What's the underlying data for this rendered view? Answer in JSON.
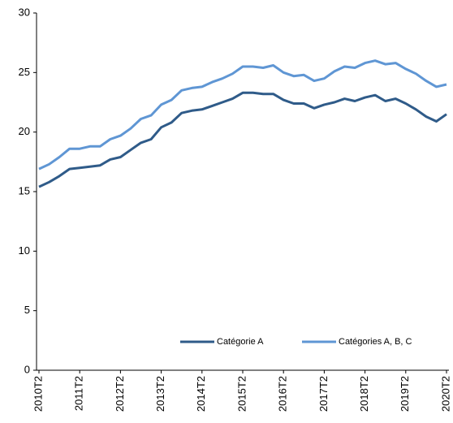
{
  "chart_data": {
    "type": "line",
    "categories": [
      "2010T2",
      null,
      null,
      null,
      "2011T2",
      null,
      null,
      null,
      "2012T2",
      null,
      null,
      null,
      "2013T2",
      null,
      null,
      null,
      "2014T2",
      null,
      null,
      null,
      "2015T2",
      null,
      null,
      null,
      "2016T2",
      null,
      null,
      null,
      "2017T2",
      null,
      null,
      null,
      "2018T2",
      null,
      null,
      null,
      "2019T2",
      null,
      null,
      null,
      "2020T2"
    ],
    "series": [
      {
        "name": "Catégorie A",
        "color": "#2f5b89",
        "values": [
          15.4,
          15.8,
          16.3,
          16.9,
          17.0,
          17.1,
          17.2,
          17.7,
          17.9,
          18.5,
          19.1,
          19.4,
          20.4,
          20.8,
          21.6,
          21.8,
          21.9,
          22.2,
          22.5,
          22.8,
          23.3,
          23.3,
          23.2,
          23.2,
          22.7,
          22.4,
          22.4,
          22.0,
          22.3,
          22.5,
          22.8,
          22.6,
          22.9,
          23.1,
          22.6,
          22.8,
          22.4,
          21.9,
          21.3,
          20.9,
          21.5
        ]
      },
      {
        "name": "Catégories A, B, C",
        "color": "#5f96d4",
        "values": [
          16.9,
          17.3,
          17.9,
          18.6,
          18.6,
          18.8,
          18.8,
          19.4,
          19.7,
          20.3,
          21.1,
          21.4,
          22.3,
          22.7,
          23.5,
          23.7,
          23.8,
          24.2,
          24.5,
          24.9,
          25.5,
          25.5,
          25.4,
          25.6,
          25.0,
          24.7,
          24.8,
          24.3,
          24.5,
          25.1,
          25.5,
          25.4,
          25.8,
          26.0,
          25.7,
          25.8,
          25.3,
          24.9,
          24.3,
          23.8,
          24.0
        ]
      }
    ],
    "ylim": [
      0,
      30
    ],
    "yticks": [
      0,
      5,
      10,
      15,
      20,
      25,
      30
    ],
    "grid": false,
    "legend": "lower center"
  }
}
